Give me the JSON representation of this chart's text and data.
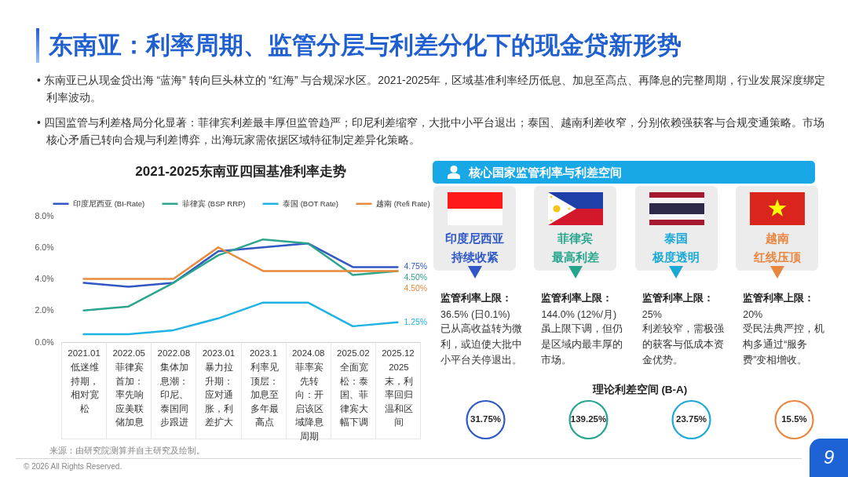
{
  "chart_data": [
    {
      "type": "line",
      "title": "2021-2025东南亚四国基准利率走势",
      "categories": [
        "2021.01",
        "2022.05",
        "2022.08",
        "2023.01",
        "2023.1",
        "2024.08",
        "2025.02",
        "2025.12"
      ],
      "series": [
        {
          "name": "印度尼西亚 (BI-Rate)",
          "color": "#3057c4",
          "values": [
            3.75,
            3.5,
            3.75,
            5.75,
            6.0,
            6.25,
            4.75,
            4.75
          ],
          "value_labels": [
            null,
            null,
            null,
            null,
            null,
            null,
            null,
            "4.75%"
          ]
        },
        {
          "name": "菲律宾 (BSP RRP)",
          "color": "#2ca58d",
          "values": [
            2.0,
            2.25,
            3.75,
            5.5,
            6.5,
            6.25,
            4.25,
            4.5
          ],
          "value_labels": [
            null,
            null,
            null,
            null,
            null,
            null,
            null,
            "4.50%"
          ]
        },
        {
          "name": "泰国 (BOT Rate)",
          "color": "#1fb3e3",
          "values": [
            0.5,
            0.5,
            0.75,
            1.5,
            2.5,
            2.5,
            1.0,
            1.25
          ],
          "value_labels": [
            null,
            null,
            null,
            null,
            null,
            null,
            null,
            "1.25%"
          ]
        },
        {
          "name": "越南 (Refi Rate)",
          "color": "#e88b3f",
          "values": [
            4.0,
            4.0,
            4.0,
            6.0,
            4.5,
            4.5,
            4.5,
            4.5
          ],
          "value_labels": [
            null,
            null,
            null,
            null,
            null,
            null,
            null,
            "4.50%"
          ]
        }
      ],
      "ylim": [
        0,
        8
      ],
      "yticks": [
        {
          "value": 0,
          "label": "0.0%"
        },
        {
          "value": 2,
          "label": "2.0%"
        },
        {
          "value": 4,
          "label": "4.0%"
        },
        {
          "value": 6,
          "label": "6.0%"
        },
        {
          "value": 8,
          "label": "8.0%"
        }
      ],
      "legend": "top",
      "annotations": [
        "东南亚：利率周期、监管分层与利差分化下的现金贷新形势",
        "• 东南亚已从现金贷出海 “蓝海” 转向巨头林立的 “红海” 与合规深水区。2021-2025年，区域基准利率经历低息、加息至高点、再降息的完整周期，行业发展深度绑定利率波动。",
        "• 四国监管与利差格局分化显著：菲律宾利差最丰厚但监管趋严；印尼利差缩窄，大批中小平台退出；泰国、越南利差收窄，分别依赖强获客与合规变通策略。市场核心矛盾已转向合规与利差博弈，出海玩家需依据区域特征制定差异化策略。",
        "低迷维持期，相对宽松",
        "菲律宾首加：率先响应美联储加息",
        "集体加息潮：印尼、泰国同步跟进",
        "暴力拉升期：应对通胀，利差扩大",
        "利率见顶层：加息至多年最高点",
        "菲率宾先转向：开启该区域降息周期",
        "全面宽松：泰国、菲律宾大幅下调",
        "2025末，利率回归温和区间",
        "来源：由研究院测算并自主研究及绘制。",
        "© 2026 All Rights Reserved.",
        "9"
      ]
    },
    {
      "type": "other",
      "title": "核心国家监管利率与利差空间",
      "categories": [
        "印度尼西亚",
        "菲律宾",
        "泰国",
        "越南"
      ],
      "annotations": [
        "持续收紧",
        "监管利率上限：",
        "36.5% (日0.1%)",
        "已从高收益转为微利，或迫使大批中小平台关停退出。",
        "最高利差",
        "监管利率上限：",
        "144.0% (12%/月)",
        "虽上限下调，但仍是区域内最丰厚的市场。",
        "极度透明",
        "监管利率上限：",
        "25%",
        "利差较窄，需极强的获客与低成本资金优势。",
        "红线压顶",
        "监管利率上限：",
        "20%",
        "受民法典严控，机构多通过“服务费”变相增收。"
      ]
    },
    {
      "type": "other",
      "title": "理论利差空间 (B-A)",
      "annotations": [
        "31.75%",
        "139.25%",
        "23.75%",
        "15.5%"
      ],
      "colors": [
        "#2f58c6",
        "#26a58d",
        "#1ca9d6",
        "#e98640"
      ]
    }
  ]
}
